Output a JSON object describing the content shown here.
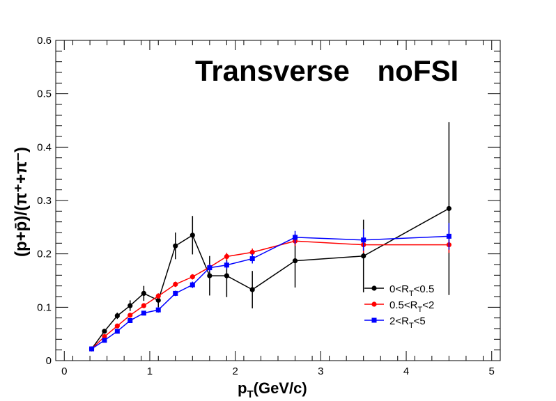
{
  "chart_data": {
    "type": "scatter",
    "title_words": [
      "Transverse",
      "noFSI"
    ],
    "xlabel": {
      "main": "p",
      "sub": "T",
      "rest": "(GeV/c)"
    },
    "ylabel": "(p+p̄)/(π⁺+π⁻)",
    "xlim": [
      -0.1,
      5.1
    ],
    "ylim": [
      0,
      0.6
    ],
    "x_ticks": [
      0,
      1,
      2,
      3,
      4,
      5
    ],
    "y_ticks": [
      0,
      0.1,
      0.2,
      0.3,
      0.4,
      0.5,
      0.6
    ],
    "x_tick_labels": [
      "0",
      "1",
      "2",
      "3",
      "4",
      "5"
    ],
    "y_tick_labels": [
      "0",
      "0.1",
      "0.2",
      "0.3",
      "0.4",
      "0.5",
      "0.6"
    ],
    "grid": false,
    "legend_position": "bottom-right",
    "series": [
      {
        "legend": {
          "a": "0<R",
          "sub": "T",
          "b": "<0.5"
        },
        "color": "#000000",
        "marker": "circle",
        "points": [
          {
            "x": 0.32,
            "y": 0.022,
            "err": 0.003
          },
          {
            "x": 0.47,
            "y": 0.055,
            "err": 0.004
          },
          {
            "x": 0.62,
            "y": 0.084,
            "err": 0.006
          },
          {
            "x": 0.77,
            "y": 0.103,
            "err": 0.01
          },
          {
            "x": 0.93,
            "y": 0.126,
            "err": 0.014
          },
          {
            "x": 1.1,
            "y": 0.113,
            "err": 0.013
          },
          {
            "x": 1.3,
            "y": 0.215,
            "err": 0.025
          },
          {
            "x": 1.5,
            "y": 0.235,
            "err": 0.036
          },
          {
            "x": 1.7,
            "y": 0.159,
            "err": 0.037
          },
          {
            "x": 1.9,
            "y": 0.159,
            "err": 0.04
          },
          {
            "x": 2.2,
            "y": 0.133,
            "err": 0.035
          },
          {
            "x": 2.7,
            "y": 0.187,
            "err": 0.05
          },
          {
            "x": 3.5,
            "y": 0.196,
            "err": 0.068
          },
          {
            "x": 4.5,
            "y": 0.285,
            "err": 0.162
          }
        ]
      },
      {
        "legend": {
          "a": "0.5<R",
          "sub": "T",
          "b": "<2"
        },
        "color": "#ff0000",
        "marker": "circle",
        "points": [
          {
            "x": 0.32,
            "y": 0.022,
            "err": 0.002
          },
          {
            "x": 0.47,
            "y": 0.045,
            "err": 0.003
          },
          {
            "x": 0.62,
            "y": 0.065,
            "err": 0.003
          },
          {
            "x": 0.77,
            "y": 0.085,
            "err": 0.004
          },
          {
            "x": 0.93,
            "y": 0.103,
            "err": 0.004
          },
          {
            "x": 1.1,
            "y": 0.121,
            "err": 0.005
          },
          {
            "x": 1.3,
            "y": 0.143,
            "err": 0.005
          },
          {
            "x": 1.5,
            "y": 0.157,
            "err": 0.005
          },
          {
            "x": 1.7,
            "y": 0.175,
            "err": 0.006
          },
          {
            "x": 1.9,
            "y": 0.195,
            "err": 0.007
          },
          {
            "x": 2.2,
            "y": 0.203,
            "err": 0.007
          },
          {
            "x": 2.7,
            "y": 0.224,
            "err": 0.009
          },
          {
            "x": 3.5,
            "y": 0.217,
            "err": 0.015
          },
          {
            "x": 4.5,
            "y": 0.217,
            "err": 0.015
          }
        ]
      },
      {
        "legend": {
          "a": "2<R",
          "sub": "T",
          "b": "<5"
        },
        "color": "#0000ff",
        "marker": "square",
        "points": [
          {
            "x": 0.32,
            "y": 0.022,
            "err": 0.002
          },
          {
            "x": 0.47,
            "y": 0.038,
            "err": 0.003
          },
          {
            "x": 0.62,
            "y": 0.055,
            "err": 0.003
          },
          {
            "x": 0.77,
            "y": 0.075,
            "err": 0.004
          },
          {
            "x": 0.93,
            "y": 0.089,
            "err": 0.004
          },
          {
            "x": 1.1,
            "y": 0.095,
            "err": 0.005
          },
          {
            "x": 1.3,
            "y": 0.126,
            "err": 0.005
          },
          {
            "x": 1.5,
            "y": 0.142,
            "err": 0.006
          },
          {
            "x": 1.7,
            "y": 0.174,
            "err": 0.007
          },
          {
            "x": 1.9,
            "y": 0.179,
            "err": 0.008
          },
          {
            "x": 2.2,
            "y": 0.191,
            "err": 0.009
          },
          {
            "x": 2.7,
            "y": 0.231,
            "err": 0.012
          },
          {
            "x": 3.5,
            "y": 0.226,
            "err": 0.02
          },
          {
            "x": 4.5,
            "y": 0.233,
            "err": 0.025
          }
        ]
      }
    ]
  }
}
